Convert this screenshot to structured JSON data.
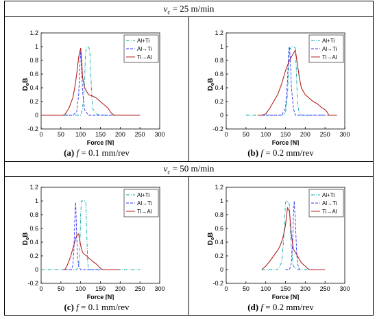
{
  "rows": [
    {
      "header": {
        "symbol": "v",
        "subscript": "c",
        "rest": " = 25 m/min"
      }
    },
    {
      "header": {
        "symbol": "v",
        "subscript": "c",
        "rest": " = 50 m/min"
      }
    }
  ],
  "captions": [
    {
      "letter": "(a)",
      "f": "f",
      "rest": " = 0.1 mm/rev"
    },
    {
      "letter": "(b)",
      "f": "f",
      "rest": " = 0.2 mm/rev"
    },
    {
      "letter": "(c)",
      "f": "f",
      "rest": " = 0.1 mm/rev"
    },
    {
      "letter": "(d)",
      "f": "f",
      "rest": " = 0.2 mm/rev"
    }
  ],
  "colors": {
    "al_plus_ti": "#00a8a8",
    "al_to_ti": "#3030ff",
    "ti_to_al": "#b22222"
  },
  "chart_data": [
    {
      "type": "line",
      "xlabel": "Force [N]",
      "ylabel": "DoB",
      "xlim": [
        0,
        300
      ],
      "ylim": [
        -0.2,
        1.2
      ],
      "xticks": [
        "0",
        "50",
        "100",
        "150",
        "200",
        "250",
        "300"
      ],
      "yticks": [
        "-0.2",
        "0",
        "0.2",
        "0.4",
        "0.6",
        "0.8",
        "1",
        "1.2"
      ],
      "legend": "top-right",
      "series": [
        {
          "name": "Al+Ti",
          "style": "dashdot",
          "x": [
            0,
            60,
            80,
            100,
            105,
            110,
            112,
            115,
            120,
            123,
            125,
            128,
            130,
            140,
            150,
            200,
            250
          ],
          "y": [
            0,
            0,
            0,
            0,
            0.1,
            0.45,
            0.9,
            0.99,
            1.0,
            0.95,
            0.7,
            0.3,
            0.1,
            0.02,
            0,
            0,
            0
          ]
        },
        {
          "name": "Al→Ti",
          "style": "dashed",
          "x": [
            40,
            80,
            90,
            95,
            98,
            100,
            102,
            105,
            110,
            120,
            130,
            140,
            150,
            200,
            250
          ],
          "y": [
            0,
            0,
            0.05,
            0.3,
            0.7,
            0.97,
            0.7,
            0.35,
            0.08,
            0,
            0,
            0,
            0,
            0,
            0
          ]
        },
        {
          "name": "Ti→Al",
          "style": "solid",
          "x": [
            0,
            55,
            60,
            70,
            80,
            85,
            90,
            95,
            100,
            103,
            105,
            110,
            120,
            130,
            140,
            150,
            160,
            170,
            175,
            180,
            185,
            250
          ],
          "y": [
            0,
            0,
            0.01,
            0.1,
            0.25,
            0.4,
            0.6,
            0.85,
            0.98,
            0.75,
            0.55,
            0.4,
            0.3,
            0.28,
            0.25,
            0.2,
            0.15,
            0.1,
            0.05,
            0.02,
            0,
            0
          ]
        }
      ]
    },
    {
      "type": "line",
      "xlabel": "Force [N]",
      "ylabel": "DoB",
      "xlim": [
        0,
        300
      ],
      "ylim": [
        -0.2,
        1.2
      ],
      "xticks": [
        "0",
        "50",
        "100",
        "150",
        "200",
        "250",
        "300"
      ],
      "yticks": [
        "-0.2",
        "0",
        "0.2",
        "0.4",
        "0.6",
        "0.8",
        "1",
        "1.2"
      ],
      "legend": "top-right",
      "series": [
        {
          "name": "Al+Ti",
          "style": "dashdot",
          "x": [
            50,
            100,
            140,
            150,
            155,
            160,
            165,
            170,
            175,
            178,
            180,
            185,
            190,
            200,
            250,
            280
          ],
          "y": [
            0,
            0,
            0,
            0.03,
            0.3,
            0.95,
            1.0,
            1.0,
            0.98,
            0.6,
            0.2,
            0.02,
            0,
            0,
            0,
            0
          ]
        },
        {
          "name": "Al→Ti",
          "style": "dashed",
          "x": [
            80,
            100,
            120,
            140,
            150,
            155,
            158,
            160,
            162,
            165,
            170,
            175,
            180,
            200,
            250
          ],
          "y": [
            0,
            0,
            0,
            0,
            0.1,
            0.5,
            0.95,
            1.0,
            0.85,
            0.4,
            0.1,
            0,
            0,
            0,
            0
          ]
        },
        {
          "name": "Ti→Al",
          "style": "solid",
          "x": [
            80,
            90,
            100,
            110,
            120,
            130,
            140,
            150,
            160,
            170,
            175,
            180,
            185,
            190,
            200,
            210,
            220,
            230,
            240,
            250,
            255,
            260,
            270,
            280
          ],
          "y": [
            0,
            0,
            0.02,
            0.1,
            0.2,
            0.3,
            0.45,
            0.65,
            0.8,
            0.9,
            0.95,
            0.75,
            0.55,
            0.4,
            0.3,
            0.25,
            0.2,
            0.17,
            0.12,
            0.08,
            0.05,
            0,
            0,
            0
          ]
        }
      ]
    },
    {
      "type": "line",
      "xlabel": "Force [N]",
      "ylabel": "DoB",
      "xlim": [
        0,
        300
      ],
      "ylim": [
        -0.2,
        1.2
      ],
      "xticks": [
        "0",
        "50",
        "100",
        "150",
        "200",
        "250",
        "300"
      ],
      "yticks": [
        "-0.2",
        "0",
        "0.2",
        "0.4",
        "0.6",
        "0.8",
        "1",
        "1.2"
      ],
      "legend": "top-right",
      "series": [
        {
          "name": "Al+Ti",
          "style": "dashdot",
          "x": [
            0,
            80,
            90,
            95,
            98,
            100,
            102,
            105,
            110,
            113,
            115,
            118,
            120,
            140,
            200,
            250
          ],
          "y": [
            0,
            0,
            0,
            0.05,
            0.3,
            0.8,
            1.0,
            1.0,
            1.0,
            0.98,
            0.6,
            0.1,
            0,
            0,
            0,
            0
          ]
        },
        {
          "name": "Al→Ti",
          "style": "dashed",
          "x": [
            60,
            75,
            80,
            83,
            85,
            87,
            88,
            90,
            92,
            95,
            100,
            120,
            150
          ],
          "y": [
            0,
            0,
            0.05,
            0.3,
            0.7,
            0.98,
            0.9,
            0.5,
            0.2,
            0.05,
            0,
            0,
            0
          ]
        },
        {
          "name": "Ti→Al",
          "style": "solid",
          "x": [
            55,
            60,
            65,
            70,
            75,
            80,
            85,
            90,
            95,
            100,
            105,
            110,
            115,
            120,
            125,
            130,
            135,
            140,
            145,
            150,
            155,
            200
          ],
          "y": [
            0,
            0,
            0.05,
            0.12,
            0.2,
            0.3,
            0.4,
            0.5,
            0.52,
            0.35,
            0.25,
            0.22,
            0.2,
            0.17,
            0.15,
            0.12,
            0.1,
            0.08,
            0.05,
            0.02,
            0,
            0
          ]
        }
      ]
    },
    {
      "type": "line",
      "xlabel": "Force [N]",
      "ylabel": "DoB",
      "xlim": [
        0,
        300
      ],
      "ylim": [
        -0.2,
        1.2
      ],
      "xticks": [
        "0",
        "50",
        "100",
        "150",
        "200",
        "250",
        "300"
      ],
      "yticks": [
        "-0.2",
        "0",
        "0.2",
        "0.4",
        "0.6",
        "0.8",
        "1",
        "1.2"
      ],
      "legend": "top-right",
      "series": [
        {
          "name": "Al+Ti",
          "style": "dashdot",
          "x": [
            90,
            130,
            140,
            145,
            148,
            150,
            152,
            155,
            160,
            162,
            165,
            170,
            180,
            250
          ],
          "y": [
            0,
            0,
            0.1,
            0.4,
            0.75,
            0.98,
            1.0,
            1.0,
            0.95,
            0.6,
            0.3,
            0.05,
            0,
            0
          ]
        },
        {
          "name": "Al→Ti",
          "style": "dashed",
          "x": [
            150,
            160,
            165,
            168,
            170,
            172,
            175,
            178,
            180,
            185,
            190
          ],
          "y": [
            0,
            0,
            0.1,
            0.4,
            0.8,
            1.0,
            0.7,
            0.3,
            0.1,
            0,
            0
          ]
        },
        {
          "name": "Ti→Al",
          "style": "solid",
          "x": [
            90,
            100,
            110,
            120,
            130,
            135,
            140,
            145,
            150,
            155,
            160,
            165,
            170,
            175,
            180,
            185,
            190,
            200,
            205,
            210,
            250
          ],
          "y": [
            0,
            0.05,
            0.12,
            0.2,
            0.28,
            0.33,
            0.4,
            0.5,
            0.65,
            0.9,
            0.85,
            0.5,
            0.3,
            0.25,
            0.2,
            0.15,
            0.1,
            0.05,
            0.02,
            0,
            0
          ]
        }
      ]
    }
  ]
}
